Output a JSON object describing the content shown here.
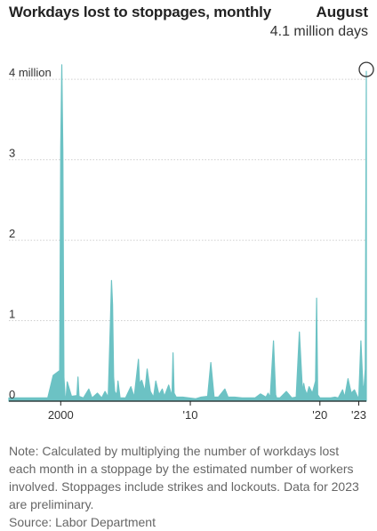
{
  "chart_data": {
    "type": "area",
    "title": "Workdays lost to stoppages, monthly",
    "unit": "million",
    "callout": {
      "label": "August",
      "value": "4.1 million days"
    },
    "x_range": [
      "1996-01",
      "2023-08"
    ],
    "ylim": [
      0,
      4.3
    ],
    "y_ticks": [
      {
        "value": 0,
        "label": "0"
      },
      {
        "value": 1,
        "label": "1"
      },
      {
        "value": 2,
        "label": "2"
      },
      {
        "value": 3,
        "label": "3"
      },
      {
        "value": 4,
        "label": "4 million"
      }
    ],
    "x_ticks": [
      {
        "year": 2000,
        "label": "2000"
      },
      {
        "year": 2010,
        "label": "'10"
      },
      {
        "year": 2020,
        "label": "'20"
      },
      {
        "year": 2023,
        "label": "'23"
      }
    ],
    "grid": "horizontal",
    "color": "#6cc2c4",
    "series": [
      {
        "x": [
          "1996-01",
          "1999-01",
          "1999-06",
          "1999-12",
          "2000-01",
          "2000-02",
          "2000-03",
          "2000-04",
          "2000-05",
          "2000-06",
          "2000-07",
          "2000-11",
          "2001-04",
          "2001-05",
          "2001-06",
          "2001-10",
          "2002-03",
          "2002-06",
          "2002-11",
          "2003-03",
          "2003-06",
          "2003-09",
          "2003-11",
          "2003-12",
          "2004-01",
          "2004-02",
          "2004-03",
          "2004-05",
          "2004-06",
          "2004-08",
          "2005-01",
          "2005-06",
          "2005-09",
          "2006-01",
          "2006-02",
          "2006-04",
          "2006-07",
          "2006-09",
          "2006-12",
          "2007-03",
          "2007-05",
          "2007-08",
          "2007-11",
          "2008-01",
          "2008-05",
          "2008-08",
          "2008-09",
          "2008-10",
          "2008-12",
          "2009-06",
          "2010-06",
          "2010-11",
          "2011-05",
          "2011-08",
          "2011-11",
          "2012-03",
          "2012-09",
          "2012-12",
          "2013-06",
          "2014-01",
          "2014-06",
          "2015-01",
          "2015-06",
          "2015-11",
          "2016-01",
          "2016-03",
          "2016-06",
          "2016-08",
          "2016-09",
          "2016-12",
          "2017-06",
          "2017-11",
          "2018-03",
          "2018-06",
          "2018-09",
          "2018-10",
          "2018-11",
          "2019-01",
          "2019-03",
          "2019-06",
          "2019-09",
          "2019-10",
          "2019-11",
          "2020-01",
          "2020-06",
          "2020-11",
          "2021-03",
          "2021-06",
          "2021-10",
          "2021-12",
          "2022-03",
          "2022-06",
          "2022-09",
          "2022-12",
          "2023-01",
          "2023-03",
          "2023-05",
          "2023-06",
          "2023-07",
          "2023-08"
        ],
        "y": [
          0.04,
          0.04,
          0.32,
          0.38,
          3.15,
          4.18,
          3.1,
          0.3,
          0.06,
          0.05,
          0.24,
          0.06,
          0.07,
          0.3,
          0.06,
          0.04,
          0.15,
          0.04,
          0.1,
          0.04,
          0.12,
          0.05,
          1.0,
          1.5,
          1.2,
          0.3,
          0.12,
          0.08,
          0.25,
          0.04,
          0.04,
          0.18,
          0.05,
          0.52,
          0.22,
          0.26,
          0.12,
          0.4,
          0.12,
          0.05,
          0.25,
          0.08,
          0.15,
          0.06,
          0.2,
          0.06,
          0.6,
          0.1,
          0.05,
          0.05,
          0.03,
          0.05,
          0.06,
          0.48,
          0.05,
          0.05,
          0.15,
          0.05,
          0.05,
          0.04,
          0.04,
          0.04,
          0.09,
          0.05,
          0.1,
          0.05,
          0.75,
          0.08,
          0.04,
          0.04,
          0.12,
          0.04,
          0.05,
          0.86,
          0.1,
          0.22,
          0.15,
          0.08,
          0.18,
          0.1,
          0.25,
          1.28,
          0.08,
          0.04,
          0.04,
          0.04,
          0.05,
          0.04,
          0.14,
          0.05,
          0.28,
          0.1,
          0.14,
          0.05,
          0.05,
          0.75,
          0.12,
          0.2,
          0.4,
          4.1
        ]
      }
    ]
  },
  "note": "Note: Calculated by multiplying the number of workdays lost each month in a stoppage by the estimated number of workers involved. Stoppages include strikes and lockouts. Data for 2023 are preliminary.",
  "source": "Source: Labor Department"
}
